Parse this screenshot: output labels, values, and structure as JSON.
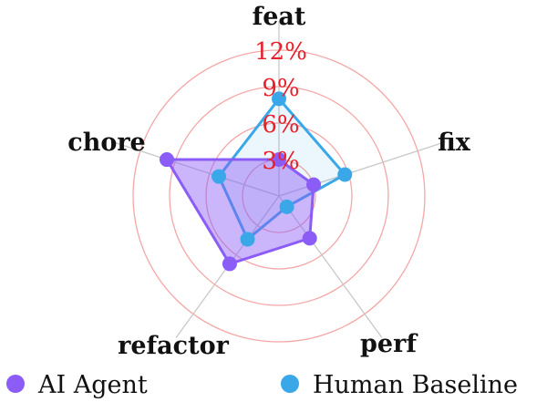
{
  "chart_data": {
    "type": "radar",
    "axes": [
      "feat",
      "fix",
      "perf",
      "refactor",
      "chore"
    ],
    "tick_labels": [
      "3%",
      "6%",
      "9%",
      "12%"
    ],
    "ticks": [
      3,
      6,
      9,
      12
    ],
    "rlim": [
      0,
      12
    ],
    "grid": true,
    "legend_placement": "bottom",
    "series": [
      {
        "name": "AI Agent",
        "values": [
          3.0,
          3.0,
          4.3,
          6.9,
          9.7
        ],
        "color": "#8b5cf6"
      },
      {
        "name": "Human Baseline",
        "values": [
          8.0,
          5.7,
          1.1,
          4.4,
          5.2
        ],
        "color": "#3aa8e8"
      }
    ],
    "grid_color": "#f4a7a7",
    "tick_color": "#e8202a"
  }
}
